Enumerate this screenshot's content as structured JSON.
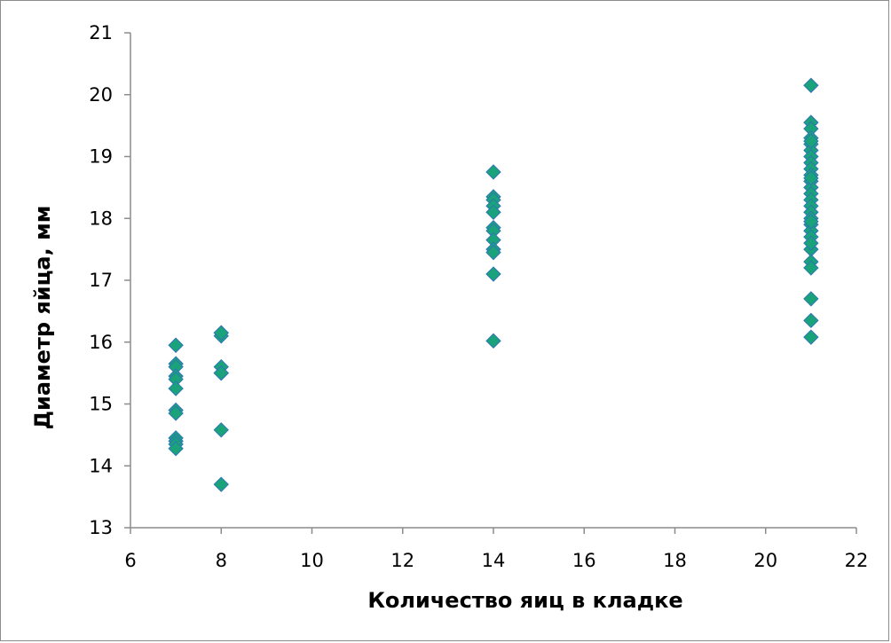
{
  "chart_data": {
    "type": "scatter",
    "title": "",
    "xlabel": "Количество яиц в кладке",
    "ylabel": "Диаметр яйца, мм",
    "xlim": [
      6,
      22
    ],
    "ylim": [
      13,
      21
    ],
    "x_ticks": [
      "6",
      "8",
      "10",
      "12",
      "14",
      "16",
      "18",
      "20",
      "22"
    ],
    "y_ticks": [
      "13",
      "14",
      "15",
      "16",
      "17",
      "18",
      "19",
      "20",
      "21"
    ],
    "grid": false,
    "legend": "none",
    "marker": "diamond",
    "marker_color": "#1aa37a",
    "marker_edge_color": "#2e75b6",
    "series": [
      {
        "x": [
          7,
          7,
          7,
          7,
          7,
          7,
          7,
          7,
          7,
          7,
          7,
          7,
          8,
          8,
          8,
          8,
          8,
          8,
          8,
          8,
          14,
          14,
          14,
          14,
          14,
          14,
          14,
          14,
          14,
          14,
          14,
          14,
          21,
          21,
          21,
          21,
          21,
          21,
          21,
          21,
          21,
          21,
          21,
          21,
          21,
          21,
          21,
          21,
          21,
          21,
          21,
          21,
          21,
          21,
          21,
          21,
          21,
          21,
          21,
          21,
          21,
          21
        ],
        "y": [
          15.95,
          15.65,
          15.6,
          15.45,
          15.4,
          15.25,
          14.9,
          14.85,
          14.45,
          14.4,
          14.35,
          14.28,
          16.15,
          16.1,
          15.6,
          15.5,
          14.58,
          13.7,
          16.15,
          15.5,
          18.75,
          18.35,
          18.3,
          18.2,
          18.1,
          17.85,
          17.8,
          17.65,
          17.5,
          17.45,
          17.1,
          16.02,
          20.15,
          19.55,
          19.45,
          19.3,
          19.2,
          19.1,
          19.0,
          18.9,
          18.8,
          18.7,
          18.6,
          18.5,
          18.4,
          18.3,
          18.2,
          18.1,
          18.0,
          17.9,
          17.8,
          17.7,
          17.5,
          17.3,
          17.2,
          16.7,
          16.35,
          16.08,
          17.95,
          18.65,
          19.25,
          17.6
        ]
      }
    ]
  }
}
